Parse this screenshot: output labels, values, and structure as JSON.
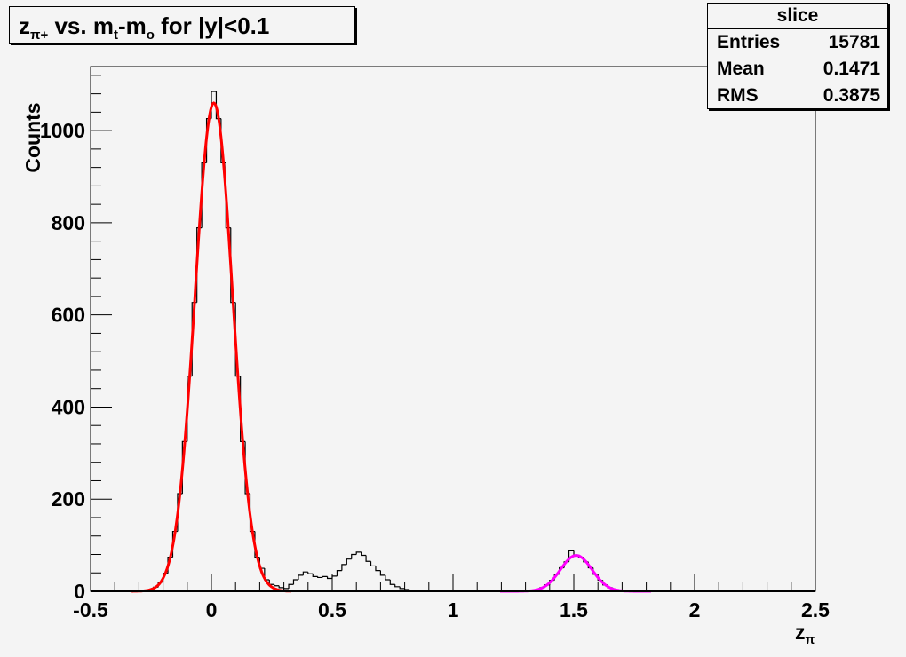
{
  "title": {
    "main": "z",
    "sub1": "π+",
    "mid": " vs. m",
    "sub2": "t",
    "mid2": "-m",
    "sub3": "o",
    "tail": " for |y|<0.1"
  },
  "stats": {
    "name": "slice",
    "rows": [
      {
        "label": "Entries",
        "value": "15781"
      },
      {
        "label": "Mean",
        "value": "0.1471"
      },
      {
        "label": "RMS",
        "value": "0.3875"
      }
    ]
  },
  "colors": {
    "histogram": "#000000",
    "fit1": "#ff0000",
    "fit2": "#ff00ff",
    "background": "#f4f4f4"
  },
  "chart_data": {
    "type": "bar",
    "subtype": "histogram-step",
    "title": "z_{π+} vs. m_t-m_o for |y|<0.1",
    "xlabel": "z",
    "xlabel_sub": "π",
    "ylabel": "Counts",
    "xlim": [
      -0.5,
      2.5
    ],
    "ylim": [
      0,
      1139
    ],
    "xticks": [
      "-0.5",
      "0",
      "0.5",
      "1",
      "1.5",
      "2",
      "2.5"
    ],
    "yticks": [
      "0",
      "200",
      "400",
      "600",
      "800",
      "1000"
    ],
    "grid": false,
    "bin_width": 0.02,
    "bins_start": -0.3,
    "counts": [
      1,
      2,
      4,
      9,
      20,
      39,
      74,
      130,
      212,
      325,
      467,
      627,
      789,
      930,
      1026,
      1085,
      1026,
      930,
      789,
      627,
      467,
      325,
      212,
      130,
      74,
      50,
      25,
      15,
      12,
      8,
      6,
      15,
      25,
      35,
      42,
      38,
      32,
      30,
      32,
      28,
      33,
      45,
      58,
      70,
      80,
      85,
      78,
      65,
      55,
      45,
      35,
      25,
      15,
      10,
      6,
      4,
      2,
      2,
      1,
      0,
      0,
      0,
      0,
      0,
      0,
      0,
      0,
      0,
      0,
      0,
      0,
      0,
      0,
      0,
      0,
      0,
      0,
      0,
      0,
      0,
      1,
      2,
      4,
      8,
      14,
      24,
      37,
      51,
      64,
      88,
      78,
      74,
      64,
      51,
      37,
      24,
      14,
      8,
      4,
      2,
      1
    ],
    "fits": [
      {
        "name": "gaus-peak-1",
        "amplitude": 1060,
        "mean": 0.01,
        "sigma": 0.078,
        "range": [
          -0.33,
          0.33
        ],
        "color": "#ff0000"
      },
      {
        "name": "gaus-peak-2",
        "amplitude": 78,
        "mean": 1.51,
        "sigma": 0.065,
        "range": [
          1.195,
          1.82
        ],
        "color": "#ff00ff"
      }
    ]
  }
}
